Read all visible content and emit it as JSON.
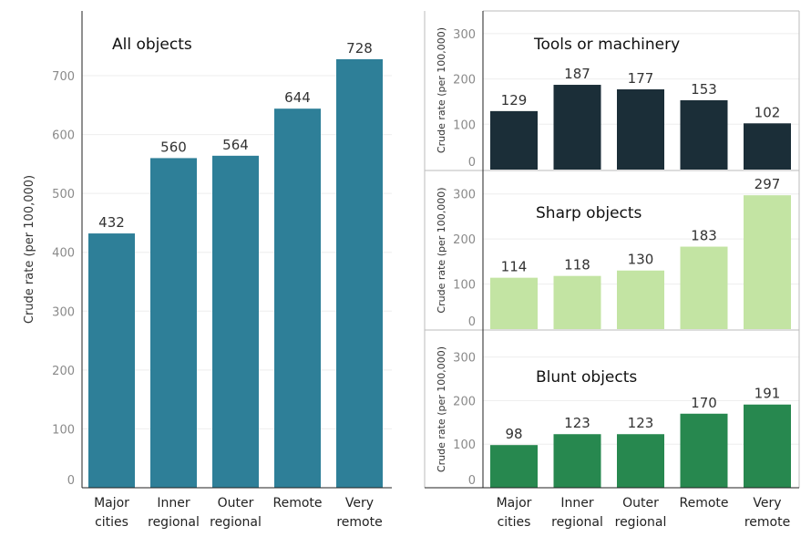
{
  "chart_data": [
    {
      "type": "bar",
      "title": "All objects",
      "ylabel": "Crude rate (per 100,000)",
      "categories": [
        [
          "Major",
          "cities"
        ],
        [
          "Inner",
          "regional"
        ],
        [
          "Outer",
          "regional"
        ],
        [
          "Remote"
        ],
        [
          "Very",
          "remote"
        ]
      ],
      "values": [
        432,
        560,
        564,
        644,
        728
      ],
      "ylim": [
        0,
        810
      ],
      "yticks": [
        0,
        100,
        200,
        300,
        400,
        500,
        600,
        700
      ],
      "color": "#2e7f98",
      "grid": true
    },
    {
      "type": "bar",
      "title": "Tools or machinery",
      "ylabel": "Crude rate (per 100,000)",
      "values": [
        129,
        187,
        177,
        153,
        102
      ],
      "ylim": [
        0,
        350
      ],
      "yticks": [
        0,
        100,
        200,
        300
      ],
      "color": "#1b2e38",
      "grid": true
    },
    {
      "type": "bar",
      "title": "Sharp objects",
      "ylabel": "Crude rate (per 100,000)",
      "values": [
        114,
        118,
        130,
        183,
        297
      ],
      "ylim": [
        0,
        350
      ],
      "yticks": [
        0,
        100,
        200,
        300
      ],
      "color": "#c3e4a3",
      "grid": true
    },
    {
      "type": "bar",
      "title": "Blunt objects",
      "ylabel": "Crude rate (per 100,000)",
      "categories": [
        [
          "Major",
          "cities"
        ],
        [
          "Inner",
          "regional"
        ],
        [
          "Outer",
          "regional"
        ],
        [
          "Remote"
        ],
        [
          "Very",
          "remote"
        ]
      ],
      "values": [
        98,
        123,
        123,
        170,
        191
      ],
      "ylim": [
        0,
        360
      ],
      "yticks": [
        0,
        100,
        200,
        300
      ],
      "color": "#27884f",
      "grid": true
    }
  ]
}
